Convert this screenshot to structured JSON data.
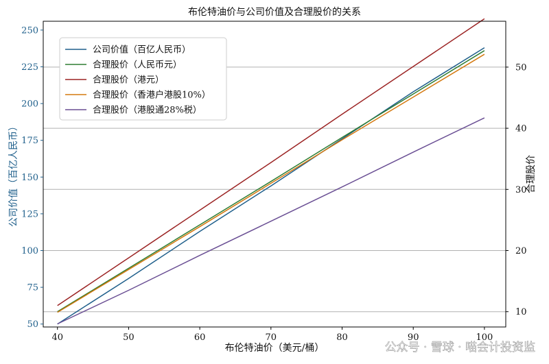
{
  "chart_data": {
    "type": "line",
    "title": "布伦特油价与公司价值及合理股价的关系",
    "xlabel": "布伦特油价（美元/桶）",
    "ylabel_left": "公司价值（百亿人民币）",
    "ylabel_right": "合理股价",
    "xlim": [
      38,
      103
    ],
    "ylim_left": [
      48,
      256
    ],
    "ylim_right": [
      7.5,
      57.5
    ],
    "x_ticks": [
      40,
      50,
      60,
      70,
      80,
      90,
      100
    ],
    "y_left_ticks": [
      50,
      75,
      100,
      125,
      150,
      175,
      200,
      225,
      250
    ],
    "y_right_ticks": [
      10,
      20,
      30,
      40,
      50
    ],
    "grid": "right-axis horizontal lines",
    "legend_position": "top-left",
    "left_axis_color": "#1f5f8b",
    "x": [
      40,
      50,
      60,
      70,
      80,
      90,
      100
    ],
    "series": [
      {
        "name": "公司价值（百亿人民币）",
        "axis": "left",
        "color": "#1f5f8b",
        "values": [
          50,
          81,
          113,
          144,
          176,
          208,
          238
        ]
      },
      {
        "name": "合理股价（人民币元）",
        "axis": "right",
        "color": "#2e7d32",
        "values": [
          10.0,
          17.1,
          24.2,
          31.3,
          38.5,
          45.6,
          52.7
        ]
      },
      {
        "name": "合理股价（港元）",
        "axis": "right",
        "color": "#9b2323",
        "values": [
          11.0,
          18.8,
          26.6,
          34.4,
          42.3,
          50.1,
          57.9
        ]
      },
      {
        "name": "合理股价（香港户港股10%）",
        "axis": "right",
        "color": "#d4780f",
        "values": [
          9.9,
          16.9,
          23.9,
          31.0,
          38.1,
          45.1,
          52.1
        ]
      },
      {
        "name": "合理股价（港股通28%税）",
        "axis": "right",
        "color": "#6a4f94",
        "values": [
          8.0,
          13.5,
          19.2,
          24.8,
          30.4,
          36.1,
          41.7
        ]
      }
    ]
  },
  "watermark": "公众号 · 雪球 · 喵会计投资监"
}
